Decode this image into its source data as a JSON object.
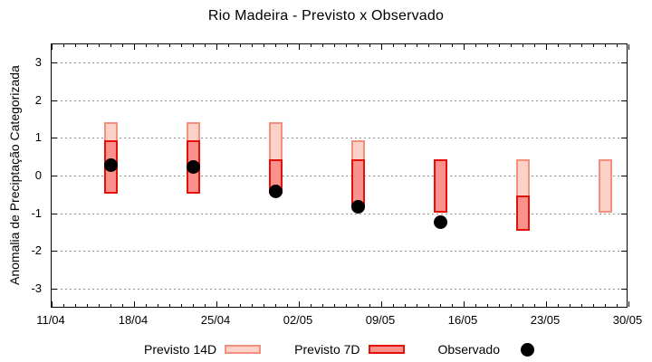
{
  "title": "Rio Madeira - Previsto x Observado",
  "chart_data": {
    "type": "bar",
    "title": "Rio Madeira - Previsto x Observado",
    "xlabel": "",
    "ylabel": "Anomalia de Preciptação Categorizada",
    "ylim": [
      -3.5,
      3.5
    ],
    "y_ticks": [
      -3,
      -2,
      -1,
      0,
      1,
      2,
      3
    ],
    "grid": true,
    "legend_position": "bottom-center",
    "x_axis": {
      "tick_labels": [
        "11/04",
        "18/04",
        "25/04",
        "02/05",
        "09/05",
        "16/05",
        "23/05",
        "30/05"
      ],
      "tick_days": [
        0,
        7,
        14,
        21,
        28,
        35,
        42,
        49
      ],
      "minor_tick_every_days": 1,
      "total_days": 49
    },
    "colors": {
      "previsto_14d_fill": "#fbd1c8",
      "previsto_14d_border": "#f1907c",
      "previsto_7d_fill": "#f9928c",
      "previsto_7d_border": "#e41108",
      "observado": "#000000",
      "grid": "#909090"
    },
    "series": [
      {
        "name": "Previsto 14D",
        "kind": "range-bar",
        "fill": "#fbd1c8",
        "border": "#f1907c",
        "ranges": [
          {
            "date": "16/04",
            "day": 5,
            "low": -0.45,
            "high": 1.45
          },
          {
            "date": "23/04",
            "day": 12,
            "low": -0.45,
            "high": 1.45
          },
          {
            "date": "30/04",
            "day": 19,
            "low": -0.45,
            "high": 1.45
          },
          {
            "date": "07/05",
            "day": 26,
            "low": -0.8,
            "high": 0.95
          },
          {
            "date": "21/05",
            "day": 40,
            "low": -1.45,
            "high": 0.45
          },
          {
            "date": "28/05",
            "day": 47,
            "low": -0.95,
            "high": 0.45
          }
        ]
      },
      {
        "name": "Previsto 7D",
        "kind": "range-bar",
        "fill": "#f9928c",
        "border": "#e41108",
        "ranges": [
          {
            "date": "16/04",
            "day": 5,
            "low": -0.45,
            "high": 0.95
          },
          {
            "date": "23/04",
            "day": 12,
            "low": -0.45,
            "high": 0.95
          },
          {
            "date": "30/04",
            "day": 19,
            "low": -0.45,
            "high": 0.45
          },
          {
            "date": "07/05",
            "day": 26,
            "low": -0.8,
            "high": 0.45
          },
          {
            "date": "14/05",
            "day": 33,
            "low": -0.95,
            "high": 0.45
          },
          {
            "date": "21/05",
            "day": 40,
            "low": -1.45,
            "high": -0.5
          }
        ]
      },
      {
        "name": "Observado",
        "kind": "scatter",
        "color": "#000000",
        "points": [
          {
            "date": "16/04",
            "day": 5,
            "value": 0.3
          },
          {
            "date": "23/04",
            "day": 12,
            "value": 0.25
          },
          {
            "date": "30/04",
            "day": 19,
            "value": -0.4
          },
          {
            "date": "07/05",
            "day": 26,
            "value": -0.8
          },
          {
            "date": "14/05",
            "day": 33,
            "value": -1.2
          }
        ]
      }
    ]
  }
}
